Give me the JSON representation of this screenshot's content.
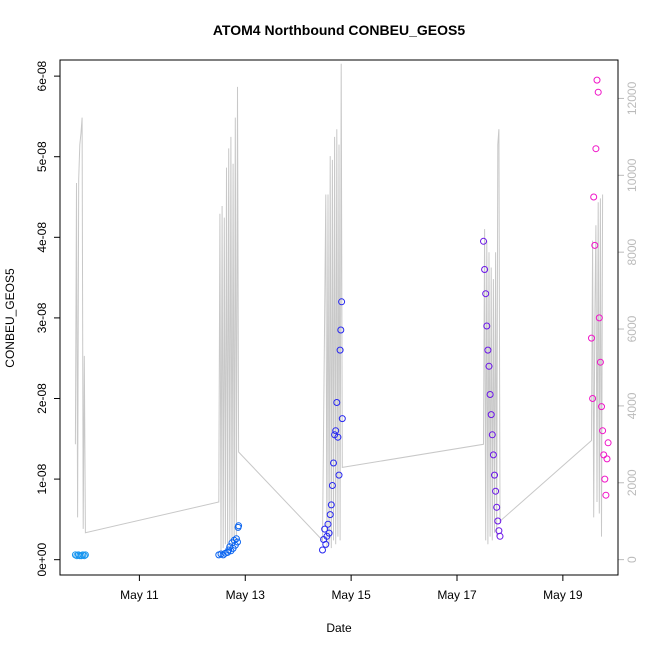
{
  "chart_data": {
    "type": "scatter",
    "title": "ATOM4 Northbound CONBEU_GEOS5",
    "xlabel": "Date",
    "ylabel": "CONBEU_GEOS5",
    "x_axis": {
      "type": "date",
      "range": [
        "2016-05-09T12:00",
        "2016-05-20T01:00"
      ],
      "ticks": [
        {
          "value": "2016-05-11",
          "label": "May 11"
        },
        {
          "value": "2016-05-13",
          "label": "May 13"
        },
        {
          "value": "2016-05-15",
          "label": "May 15"
        },
        {
          "value": "2016-05-17",
          "label": "May 17"
        },
        {
          "value": "2016-05-19",
          "label": "May 19"
        }
      ]
    },
    "y_axis": {
      "range": [
        -1.9e-09,
        6.2e-08
      ],
      "ticks": [
        {
          "value": 0,
          "label": "0e+00"
        },
        {
          "value": 1e-08,
          "label": "1e-08"
        },
        {
          "value": 2e-08,
          "label": "2e-08"
        },
        {
          "value": 3e-08,
          "label": "3e-08"
        },
        {
          "value": 4e-08,
          "label": "4e-08"
        },
        {
          "value": 5e-08,
          "label": "5e-08"
        },
        {
          "value": 6e-08,
          "label": "6e-08"
        }
      ]
    },
    "y2_axis": {
      "range": [
        -400,
        13000
      ],
      "tick_color": "#bbbbbb",
      "ticks": [
        {
          "value": 0,
          "label": "0"
        },
        {
          "value": 2000,
          "label": "2000"
        },
        {
          "value": 4000,
          "label": "4000"
        },
        {
          "value": 6000,
          "label": "6000"
        },
        {
          "value": 8000,
          "label": "8000"
        },
        {
          "value": 10000,
          "label": "10000"
        },
        {
          "value": 12000,
          "label": "12000"
        }
      ]
    },
    "altitude_line": {
      "color": "#c8c8c8",
      "points": [
        [
          "2016-05-09T19:00",
          3000
        ],
        [
          "2016-05-09T19:30",
          9800
        ],
        [
          "2016-05-09T20:00",
          1100
        ],
        [
          "2016-05-09T20:30",
          9900
        ],
        [
          "2016-05-09T21:00",
          10800
        ],
        [
          "2016-05-09T21:30",
          11100
        ],
        [
          "2016-05-09T22:00",
          11500
        ],
        [
          "2016-05-09T22:30",
          800
        ],
        [
          "2016-05-09T23:00",
          5300
        ],
        [
          "2016-05-09T23:30",
          700
        ],
        [
          "2016-05-12T12:00",
          1500
        ],
        [
          "2016-05-12T12:30",
          9000
        ],
        [
          "2016-05-12T13:00",
          200
        ],
        [
          "2016-05-12T13:30",
          9200
        ],
        [
          "2016-05-12T14:00",
          300
        ],
        [
          "2016-05-12T14:30",
          8900
        ],
        [
          "2016-05-12T15:00",
          400
        ],
        [
          "2016-05-12T15:30",
          10200
        ],
        [
          "2016-05-12T16:00",
          300
        ],
        [
          "2016-05-12T16:30",
          10700
        ],
        [
          "2016-05-12T17:00",
          500
        ],
        [
          "2016-05-12T17:30",
          11000
        ],
        [
          "2016-05-12T18:00",
          300
        ],
        [
          "2016-05-12T18:30",
          10300
        ],
        [
          "2016-05-12T19:00",
          400
        ],
        [
          "2016-05-12T19:30",
          11500
        ],
        [
          "2016-05-12T20:00",
          600
        ],
        [
          "2016-05-12T20:30",
          12300
        ],
        [
          "2016-05-12T21:00",
          2800
        ],
        [
          "2016-05-14T11:00",
          500
        ],
        [
          "2016-05-14T12:30",
          9500
        ],
        [
          "2016-05-14T13:00",
          300
        ],
        [
          "2016-05-14T13:30",
          9500
        ],
        [
          "2016-05-14T14:00",
          400
        ],
        [
          "2016-05-14T14:30",
          10500
        ],
        [
          "2016-05-14T15:00",
          300
        ],
        [
          "2016-05-14T15:30",
          10400
        ],
        [
          "2016-05-14T16:00",
          500
        ],
        [
          "2016-05-14T16:30",
          11000
        ],
        [
          "2016-05-14T17:00",
          400
        ],
        [
          "2016-05-14T17:30",
          11200
        ],
        [
          "2016-05-14T18:00",
          600
        ],
        [
          "2016-05-14T18:30",
          10800
        ],
        [
          "2016-05-14T19:00",
          500
        ],
        [
          "2016-05-14T19:30",
          12900
        ],
        [
          "2016-05-14T20:00",
          2400
        ],
        [
          "2016-05-17T12:00",
          3000
        ],
        [
          "2016-05-17T12:30",
          8600
        ],
        [
          "2016-05-17T13:00",
          500
        ],
        [
          "2016-05-17T13:30",
          8300
        ],
        [
          "2016-05-17T14:00",
          400
        ],
        [
          "2016-05-17T14:30",
          8000
        ],
        [
          "2016-05-17T15:00",
          600
        ],
        [
          "2016-05-17T15:30",
          7600
        ],
        [
          "2016-05-17T16:00",
          500
        ],
        [
          "2016-05-17T16:30",
          7300
        ],
        [
          "2016-05-17T17:00",
          700
        ],
        [
          "2016-05-17T17:30",
          8000
        ],
        [
          "2016-05-17T18:00",
          600
        ],
        [
          "2016-05-17T18:30",
          10800
        ],
        [
          "2016-05-17T19:00",
          11200
        ],
        [
          "2016-05-17T19:30",
          1000
        ],
        [
          "2016-05-19T13:00",
          3100
        ],
        [
          "2016-05-19T13:30",
          8300
        ],
        [
          "2016-05-19T14:00",
          1100
        ],
        [
          "2016-05-19T14:30",
          6200
        ],
        [
          "2016-05-19T15:00",
          8700
        ],
        [
          "2016-05-19T15:30",
          1500
        ],
        [
          "2016-05-19T16:00",
          9300
        ],
        [
          "2016-05-19T16:30",
          1200
        ],
        [
          "2016-05-19T17:00",
          9400
        ],
        [
          "2016-05-19T17:30",
          600
        ],
        [
          "2016-05-19T18:00",
          9500
        ]
      ]
    },
    "series": [
      {
        "color": "#1896f0",
        "points": [
          [
            "2016-05-09T19:00",
            6e-10
          ],
          [
            "2016-05-09T19:40",
            5e-10
          ],
          [
            "2016-05-09T20:20",
            6e-10
          ],
          [
            "2016-05-09T21:00",
            5e-10
          ],
          [
            "2016-05-09T21:40",
            5e-10
          ],
          [
            "2016-05-09T22:20",
            6e-10
          ],
          [
            "2016-05-09T23:00",
            5e-10
          ],
          [
            "2016-05-09T23:30",
            6e-10
          ]
        ]
      },
      {
        "color": "#0a64f0",
        "points": [
          [
            "2016-05-12T12:00",
            6e-10
          ],
          [
            "2016-05-12T13:00",
            7e-10
          ],
          [
            "2016-05-12T14:00",
            6e-10
          ],
          [
            "2016-05-12T15:00",
            8e-10
          ],
          [
            "2016-05-12T16:00",
            9e-10
          ],
          [
            "2016-05-12T16:30",
            1.2e-09
          ],
          [
            "2016-05-12T17:00",
            1.6e-09
          ],
          [
            "2016-05-12T17:30",
            1.1e-09
          ],
          [
            "2016-05-12T18:00",
            2.1e-09
          ],
          [
            "2016-05-12T18:30",
            1.4e-09
          ],
          [
            "2016-05-12T19:00",
            2.4e-09
          ],
          [
            "2016-05-12T19:30",
            1.8e-09
          ],
          [
            "2016-05-12T20:00",
            2.6e-09
          ],
          [
            "2016-05-12T20:30",
            2.2e-09
          ],
          [
            "2016-05-12T20:45",
            4e-09
          ],
          [
            "2016-05-12T21:00",
            4.2e-09
          ]
        ]
      },
      {
        "color": "#2828f0",
        "points": [
          [
            "2016-05-14T11:00",
            1.2e-09
          ],
          [
            "2016-05-14T11:30",
            2.5e-09
          ],
          [
            "2016-05-14T12:00",
            3.8e-09
          ],
          [
            "2016-05-14T12:30",
            1.9e-09
          ],
          [
            "2016-05-14T13:00",
            2.9e-09
          ],
          [
            "2016-05-14T13:30",
            4.4e-09
          ],
          [
            "2016-05-14T14:00",
            3.3e-09
          ],
          [
            "2016-05-14T14:30",
            5.6e-09
          ],
          [
            "2016-05-14T15:00",
            6.8e-09
          ],
          [
            "2016-05-14T15:30",
            9.2e-09
          ],
          [
            "2016-05-14T16:00",
            1.2e-08
          ],
          [
            "2016-05-14T16:30",
            1.55e-08
          ],
          [
            "2016-05-14T17:00",
            1.6e-08
          ],
          [
            "2016-05-14T17:30",
            1.95e-08
          ],
          [
            "2016-05-14T18:00",
            1.52e-08
          ],
          [
            "2016-05-14T18:30",
            1.05e-08
          ],
          [
            "2016-05-14T19:00",
            2.6e-08
          ],
          [
            "2016-05-14T19:20",
            2.85e-08
          ],
          [
            "2016-05-14T19:40",
            3.2e-08
          ],
          [
            "2016-05-14T20:00",
            1.75e-08
          ]
        ]
      },
      {
        "color": "#6a14e8",
        "points": [
          [
            "2016-05-17T12:00",
            3.95e-08
          ],
          [
            "2016-05-17T12:30",
            3.6e-08
          ],
          [
            "2016-05-17T13:00",
            3.3e-08
          ],
          [
            "2016-05-17T13:30",
            2.9e-08
          ],
          [
            "2016-05-17T14:00",
            2.6e-08
          ],
          [
            "2016-05-17T14:30",
            2.4e-08
          ],
          [
            "2016-05-17T15:00",
            2.05e-08
          ],
          [
            "2016-05-17T15:30",
            1.8e-08
          ],
          [
            "2016-05-17T16:00",
            1.55e-08
          ],
          [
            "2016-05-17T16:30",
            1.3e-08
          ],
          [
            "2016-05-17T17:00",
            1.05e-08
          ],
          [
            "2016-05-17T17:30",
            8.5e-09
          ],
          [
            "2016-05-17T18:00",
            6.5e-09
          ],
          [
            "2016-05-17T18:30",
            4.8e-09
          ],
          [
            "2016-05-17T19:00",
            3.6e-09
          ],
          [
            "2016-05-17T19:30",
            2.9e-09
          ]
        ]
      },
      {
        "color": "#f014c8",
        "points": [
          [
            "2016-05-19T13:00",
            2.75e-08
          ],
          [
            "2016-05-19T13:30",
            2e-08
          ],
          [
            "2016-05-19T14:00",
            4.5e-08
          ],
          [
            "2016-05-19T14:30",
            3.9e-08
          ],
          [
            "2016-05-19T15:00",
            5.1e-08
          ],
          [
            "2016-05-19T15:30",
            5.95e-08
          ],
          [
            "2016-05-19T16:00",
            5.8e-08
          ],
          [
            "2016-05-19T16:30",
            3e-08
          ],
          [
            "2016-05-19T17:00",
            2.45e-08
          ],
          [
            "2016-05-19T17:30",
            1.9e-08
          ],
          [
            "2016-05-19T18:00",
            1.6e-08
          ],
          [
            "2016-05-19T18:30",
            1.3e-08
          ],
          [
            "2016-05-19T19:00",
            1e-08
          ],
          [
            "2016-05-19T19:30",
            8e-09
          ],
          [
            "2016-05-19T20:00",
            1.25e-08
          ],
          [
            "2016-05-19T20:30",
            1.45e-08
          ]
        ]
      }
    ]
  }
}
